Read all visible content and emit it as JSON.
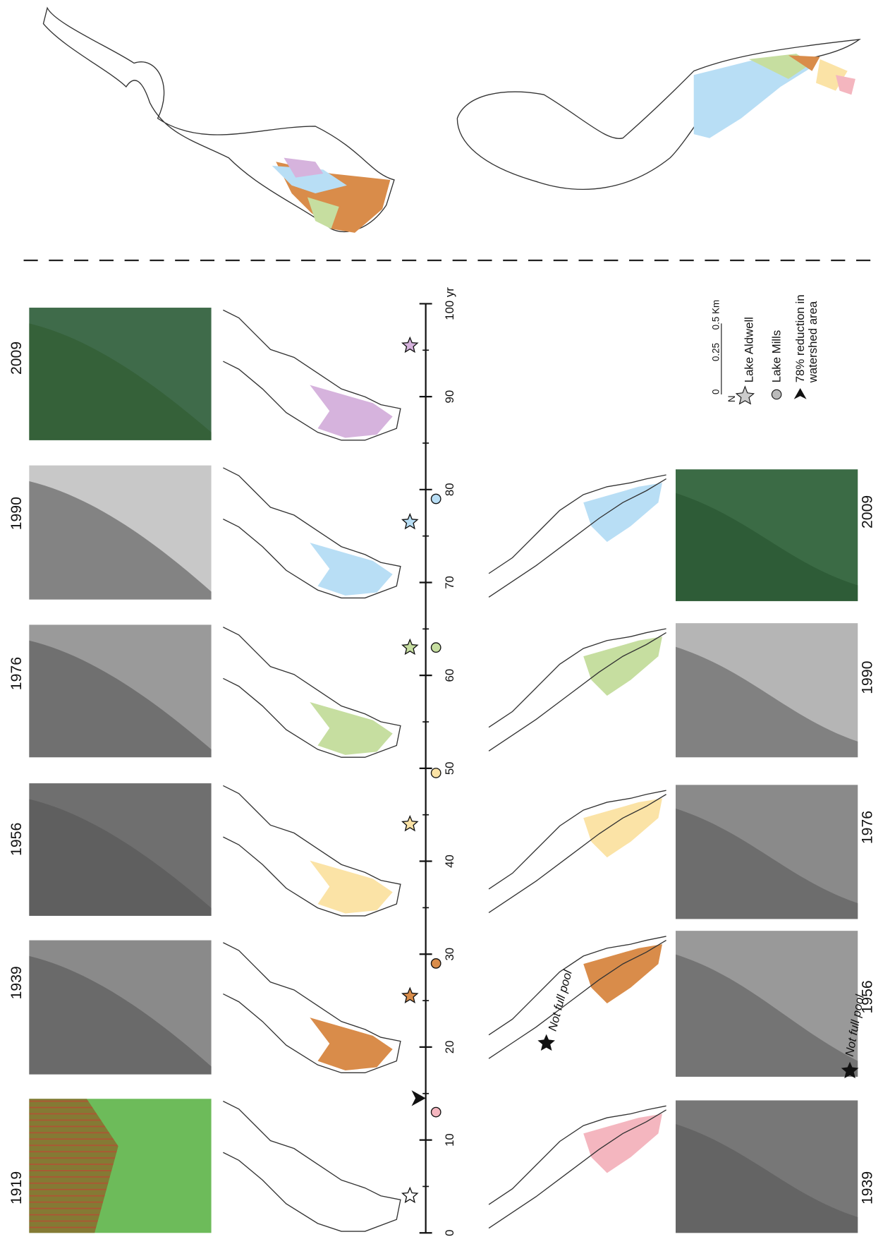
{
  "top_row": {
    "years": [
      "1919",
      "1939",
      "1956",
      "1976",
      "1990",
      "2009"
    ]
  },
  "bottom_row": {
    "years": [
      "1939",
      "1956",
      "1976",
      "1990",
      "2009"
    ]
  },
  "timeline": {
    "range": [
      0,
      100
    ],
    "ticks": [
      0,
      10,
      20,
      30,
      40,
      50,
      60,
      70,
      80,
      90,
      {
        "value": 100,
        "label": "100 yr"
      }
    ],
    "lake_aldwell": [
      4,
      25.5,
      44,
      63,
      76.5,
      95.5
    ],
    "aldwell_colors": [
      "#ffffff",
      "#d98c4a",
      "#fbe3a6",
      "#c6dea0",
      "#b8def5",
      "#d6b3dd"
    ],
    "lake_mills": [
      13,
      29,
      49.5,
      63,
      79
    ],
    "mills_colors": [
      "#f4b6bf",
      "#d98c4a",
      "#fbe3a6",
      "#c6dea0",
      "#b8def5"
    ],
    "reduction": 14.5
  },
  "legend": {
    "scale": [
      "0",
      "0.25",
      "0.5 Km"
    ],
    "north": "N",
    "lake_aldwell": "Lake Aldwell",
    "lake_mills": "Lake Mills",
    "reduction": [
      "78% reduction in",
      "watershed area"
    ]
  },
  "annotations": [
    "Not full pool",
    "Not full pool"
  ]
}
